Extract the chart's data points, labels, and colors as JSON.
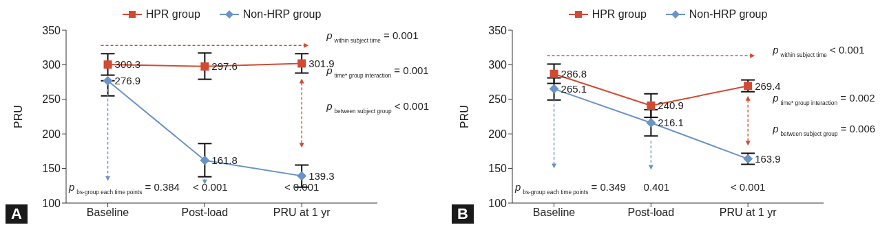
{
  "chart_data": [
    {
      "type": "line",
      "title": "A",
      "ylabel": "PRU",
      "categories": [
        "Baseline",
        "Post-load",
        "PRU at 1 yr"
      ],
      "ylim": [
        100,
        350
      ],
      "yticks": [
        100,
        150,
        200,
        250,
        300,
        350
      ],
      "legend": "top",
      "data_labels": true,
      "grid": false,
      "series": [
        {
          "name": "HPR group",
          "color": "#d24a32",
          "marker": "square",
          "values": [
            300.3,
            297.6,
            301.9
          ],
          "errors": [
            [
              285,
              316
            ],
            [
              279,
              317
            ],
            [
              288,
              316
            ]
          ]
        },
        {
          "name": "Non-HRP group",
          "color": "#6a93c8",
          "marker": "diamond",
          "values": [
            276.9,
            161.8,
            139.3
          ],
          "errors": [
            [
              255,
              276.9
            ],
            [
              138,
              186
            ],
            [
              123,
              155
            ]
          ]
        }
      ],
      "annotations": [
        "p$_{within subject time}$ = 0.001",
        "p$_{time* group interaction}$ = 0.001",
        "p$_{between subject group}$ < 0.001",
        "p$_{bs-group each time points}$ = 0.384",
        "< 0.001",
        "< 0.001"
      ]
    },
    {
      "type": "line",
      "title": "B",
      "ylabel": "PRU",
      "categories": [
        "Baseline",
        "Post-load",
        "PRU at 1 yr"
      ],
      "ylim": [
        100,
        350
      ],
      "yticks": [
        100,
        150,
        200,
        250,
        300,
        350
      ],
      "legend": "top",
      "data_labels": true,
      "grid": false,
      "series": [
        {
          "name": "HPR group",
          "color": "#d24a32",
          "marker": "square",
          "values": [
            286.8,
            240.9,
            269.4
          ],
          "errors": [
            [
              273,
              301
            ],
            [
              224,
              258
            ],
            [
              261,
              278
            ]
          ]
        },
        {
          "name": "Non-HRP group",
          "color": "#6a93c8",
          "marker": "diamond",
          "values": [
            265.1,
            216.1,
            163.9
          ],
          "errors": [
            [
              249,
              281
            ],
            [
              197,
              235
            ],
            [
              156,
              172
            ]
          ]
        }
      ],
      "annotations": [
        "p$_{within subject time}$ < 0.001",
        "p$_{time* group interaction}$ = 0.002",
        "p$_{between subject group}$ = 0.006",
        "p$_{bs-group each time points}$ = 0.349",
        "0.401",
        "< 0.001"
      ]
    }
  ]
}
